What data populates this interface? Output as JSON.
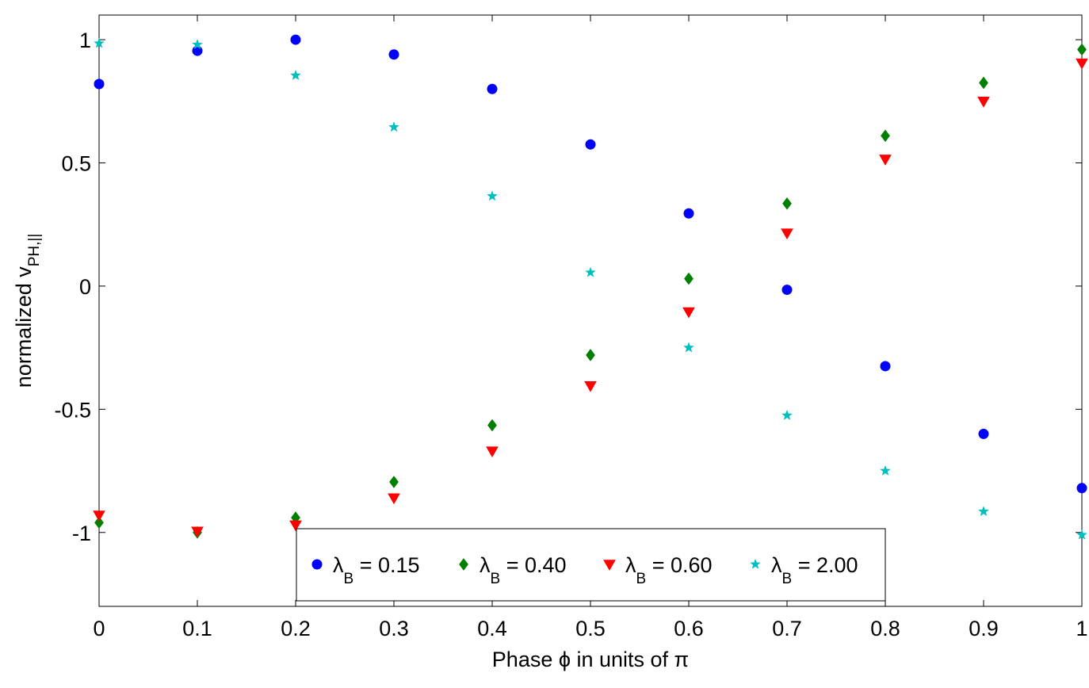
{
  "chart_data": {
    "type": "scatter",
    "xlabel": "Phase ϕ in units of π",
    "ylabel_main": "normalized v",
    "ylabel_sub": "PH,||",
    "xlim": [
      0,
      1
    ],
    "ylim": [
      -1.3,
      1.1
    ],
    "xticks": [
      0,
      0.1,
      0.2,
      0.3,
      0.4,
      0.5,
      0.6,
      0.7,
      0.8,
      0.9,
      1
    ],
    "xtick_labels": [
      "0",
      "0.1",
      "0.2",
      "0.3",
      "0.4",
      "0.5",
      "0.6",
      "0.7",
      "0.8",
      "0.9",
      "1"
    ],
    "yticks": [
      -1,
      -0.5,
      0,
      0.5,
      1
    ],
    "ytick_labels": [
      "-1",
      "-0.5",
      "0",
      "0.5",
      "1"
    ],
    "grid": false,
    "legend_placement": "bottom-center",
    "x": [
      0,
      0.1,
      0.2,
      0.3,
      0.4,
      0.5,
      0.6,
      0.7,
      0.8,
      0.9,
      1.0
    ],
    "series": [
      {
        "legend_symbol": "λ",
        "legend_sub": "B",
        "legend_value": " = 0.15",
        "marker": "circle",
        "color": "#0000ff",
        "values": [
          0.82,
          0.955,
          1.0,
          0.94,
          0.8,
          0.575,
          0.295,
          -0.015,
          -0.325,
          -0.6,
          -0.82
        ]
      },
      {
        "legend_symbol": "λ",
        "legend_sub": "B",
        "legend_value": " = 0.40",
        "marker": "diamond",
        "color": "#008000",
        "values": [
          -0.96,
          -1.0,
          -0.94,
          -0.795,
          -0.565,
          -0.28,
          0.03,
          0.335,
          0.61,
          0.825,
          0.96
        ]
      },
      {
        "legend_symbol": "λ",
        "legend_sub": "B",
        "legend_value": " = 0.60",
        "marker": "triangle-down",
        "color": "#ff0000",
        "values": [
          -0.93,
          -0.995,
          -0.97,
          -0.86,
          -0.67,
          -0.405,
          -0.105,
          0.215,
          0.515,
          0.75,
          0.905
        ]
      },
      {
        "legend_symbol": "λ",
        "legend_sub": "B",
        "legend_value": " = 2.00",
        "marker": "star",
        "color": "#00bfbf",
        "values": [
          0.985,
          0.98,
          0.855,
          0.645,
          0.365,
          0.055,
          -0.25,
          -0.525,
          -0.75,
          -0.915,
          -1.01
        ]
      }
    ]
  }
}
